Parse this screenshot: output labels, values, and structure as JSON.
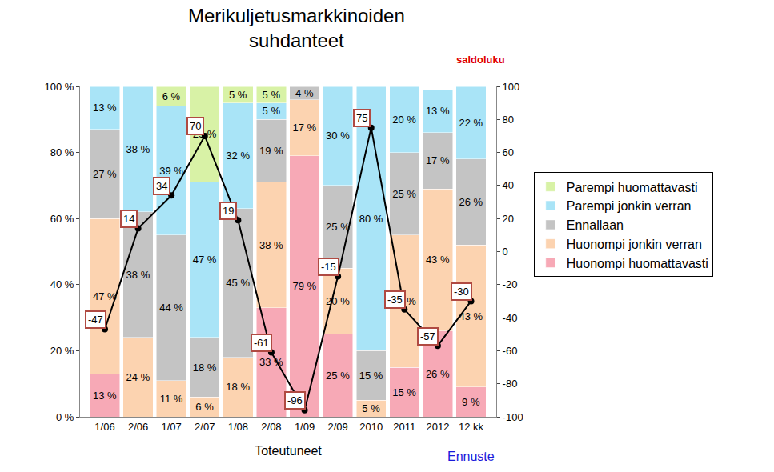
{
  "chart_data": {
    "type": "bar",
    "title": "Merikuljetusmarkkinoiden\nsuhdanteet",
    "xlabel": "Toteutuneet",
    "y2label": "saldoluku",
    "annotations": [
      {
        "text": "Ennuste",
        "category": "12 kk",
        "color": "#1a1adb"
      }
    ],
    "categories": [
      "1/06",
      "2/06",
      "1/07",
      "2/07",
      "1/08",
      "2/08",
      "1/09",
      "2/09",
      "2010",
      "2011",
      "2012",
      "12 kk"
    ],
    "stacked": true,
    "data_labels": true,
    "grid": false,
    "legend": "right",
    "ylim": [
      0,
      100
    ],
    "yticks": [
      {
        "value": 0,
        "label": "0 %"
      },
      {
        "value": 20,
        "label": "20 %"
      },
      {
        "value": 40,
        "label": "40 %"
      },
      {
        "value": 60,
        "label": "60 %"
      },
      {
        "value": 80,
        "label": "80 %"
      },
      {
        "value": 100,
        "label": "100 %"
      }
    ],
    "y2lim": [
      -100,
      100
    ],
    "y2ticks": [
      -100,
      -80,
      -60,
      -40,
      -20,
      0,
      20,
      40,
      60,
      80,
      100
    ],
    "series": [
      {
        "name": "Huonompi huomattavasti",
        "color": "#f7a9b6",
        "values": [
          13,
          null,
          null,
          null,
          null,
          33,
          79,
          25,
          null,
          15,
          26,
          9
        ],
        "value_labels": [
          "13 %",
          null,
          null,
          null,
          null,
          "33 %",
          "79 %",
          "25 %",
          null,
          "15 %",
          "26 %",
          "9 %"
        ]
      },
      {
        "name": "Huonompi jonkin verran",
        "color": "#fcd3b0",
        "values": [
          47,
          24,
          11,
          6,
          18,
          38,
          17,
          20,
          5,
          40,
          43,
          43
        ],
        "value_labels": [
          "47 %",
          "24 %",
          "11 %",
          "6 %",
          "18 %",
          "38 %",
          "17 %",
          "20 %",
          "5 %",
          "40 %",
          "43 %",
          "43 %"
        ]
      },
      {
        "name": "Ennallaan",
        "color": "#c4c4c4",
        "values": [
          27,
          38,
          44,
          18,
          45,
          19,
          4,
          25,
          15,
          25,
          17,
          26
        ],
        "value_labels": [
          "27 %",
          "38 %",
          "44 %",
          "18 %",
          "45 %",
          "19 %",
          "4 %",
          "25 %",
          "15 %",
          "25 %",
          "17 %",
          "26 %"
        ]
      },
      {
        "name": "Parempi jonkin verran",
        "color": "#a9e4f7",
        "values": [
          13,
          38,
          39,
          47,
          32,
          5,
          null,
          30,
          80,
          20,
          13,
          22
        ],
        "value_labels": [
          "13 %",
          "38 %",
          "39 %",
          "47 %",
          "32 %",
          "5 %",
          null,
          "30 %",
          "80 %",
          "20 %",
          "13 %",
          "22 %"
        ]
      },
      {
        "name": "Parempi huomattavasti",
        "color": "#d8f2a6",
        "values": [
          null,
          null,
          6,
          29,
          5,
          5,
          null,
          null,
          null,
          null,
          null,
          null
        ],
        "value_labels": [
          null,
          null,
          "6 %",
          "29 %",
          "5 %",
          "5 %",
          null,
          null,
          null,
          null,
          null,
          null
        ]
      },
      {
        "type": "line",
        "axis": "y2",
        "color": "#000000",
        "marker": "circle",
        "values": [
          -47,
          14,
          34,
          70,
          19,
          -61,
          -96,
          -15,
          75,
          -35,
          -57,
          -30
        ]
      }
    ]
  }
}
